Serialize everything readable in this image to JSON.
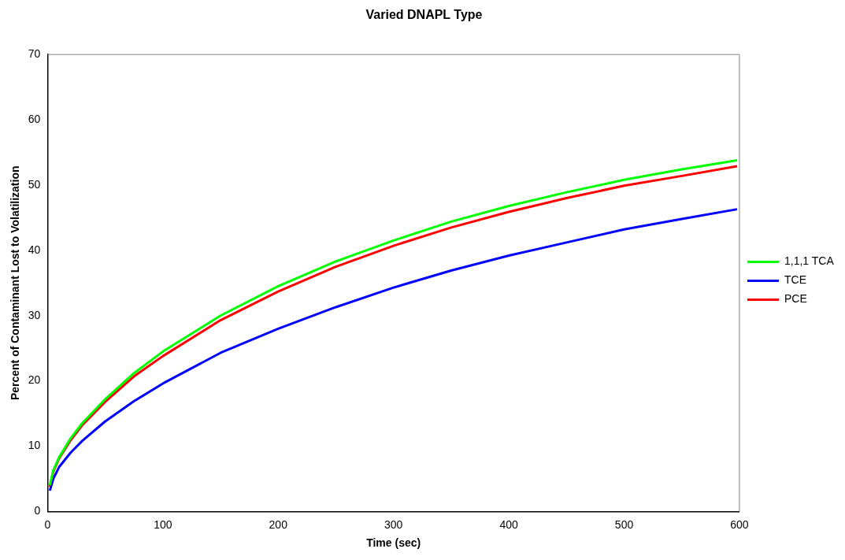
{
  "chart_data": {
    "type": "line",
    "title": "Varied DNAPL Type",
    "xlabel": "Time (sec)",
    "ylabel": "Percent of Contaminant Lost to Volatilization",
    "x": [
      2,
      5,
      10,
      20,
      30,
      50,
      75,
      100,
      150,
      200,
      250,
      300,
      350,
      400,
      450,
      500,
      550,
      598
    ],
    "series": [
      {
        "name": "1,1,1 TCA",
        "color": "#00ff00",
        "values": [
          4.0,
          6.3,
          8.3,
          11.2,
          13.5,
          17.2,
          21.2,
          24.5,
          30.0,
          34.5,
          38.3,
          41.5,
          44.4,
          46.8,
          48.9,
          50.8,
          52.4,
          53.8
        ]
      },
      {
        "name": "TCE",
        "color": "#0000ff",
        "values": [
          3.2,
          5.0,
          6.8,
          9.0,
          10.8,
          13.8,
          16.9,
          19.6,
          24.3,
          28.0,
          31.3,
          34.3,
          36.9,
          39.2,
          41.2,
          43.2,
          44.8,
          46.3
        ]
      },
      {
        "name": "PCE",
        "color": "#ff0000",
        "values": [
          3.8,
          6.1,
          8.1,
          10.9,
          13.2,
          16.8,
          20.7,
          23.8,
          29.3,
          33.7,
          37.5,
          40.7,
          43.5,
          45.9,
          48.0,
          49.9,
          51.4,
          52.9
        ]
      }
    ],
    "xlim": [
      0,
      600
    ],
    "xticks": [
      0,
      100,
      200,
      300,
      400,
      500,
      600
    ],
    "ylim": [
      0,
      70
    ],
    "yticks": [
      0,
      10,
      20,
      30,
      40,
      50,
      60,
      70
    ],
    "grid": false,
    "legend": "right",
    "marker": "none",
    "line_style": "solid"
  }
}
